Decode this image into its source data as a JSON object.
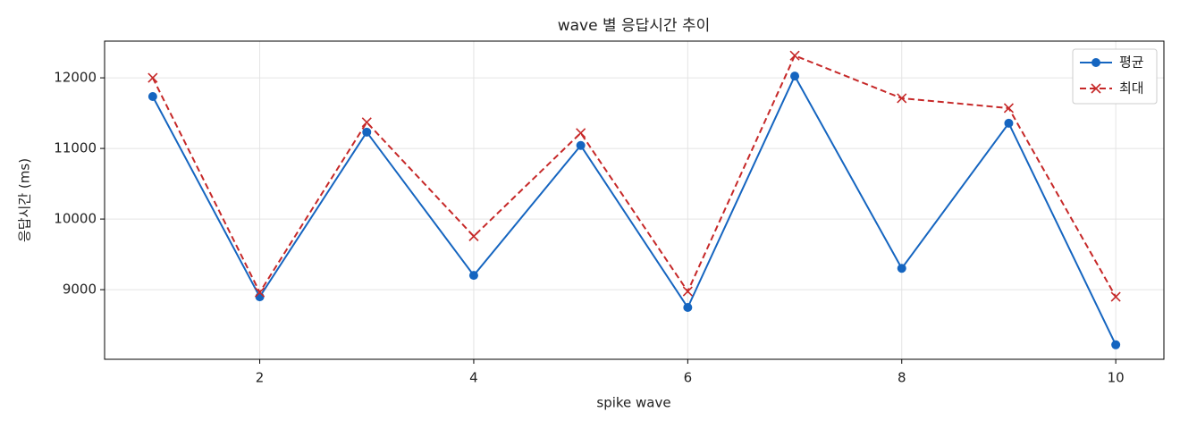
{
  "chart_data": {
    "type": "line",
    "title": "wave 별 응답시간 추이",
    "x_label": "spike wave",
    "y_label": "응답시간 (ms)",
    "x": [
      1,
      2,
      3,
      4,
      5,
      6,
      7,
      8,
      9,
      10
    ],
    "series": [
      {
        "name": "평균",
        "color": "#1565c0",
        "linestyle": "solid",
        "marker": "o",
        "values": [
          11735,
          8899,
          11231,
          9202,
          11042,
          8748,
          12025,
          9302,
          11357,
          8219
        ]
      },
      {
        "name": "최대",
        "color": "#c62828",
        "linestyle": "dashed",
        "marker": "x",
        "values": [
          12000,
          8962,
          11370,
          9756,
          11219,
          8975,
          12315,
          11710,
          11571,
          8899
        ]
      }
    ],
    "xlim": [
      0.55,
      10.45
    ],
    "xticks": [
      2,
      4,
      6,
      8,
      10
    ],
    "ylim": [
      8014,
      12520
    ],
    "yticks": [
      9000,
      10000,
      11000,
      12000
    ],
    "grid": true,
    "legend": "upper right"
  }
}
